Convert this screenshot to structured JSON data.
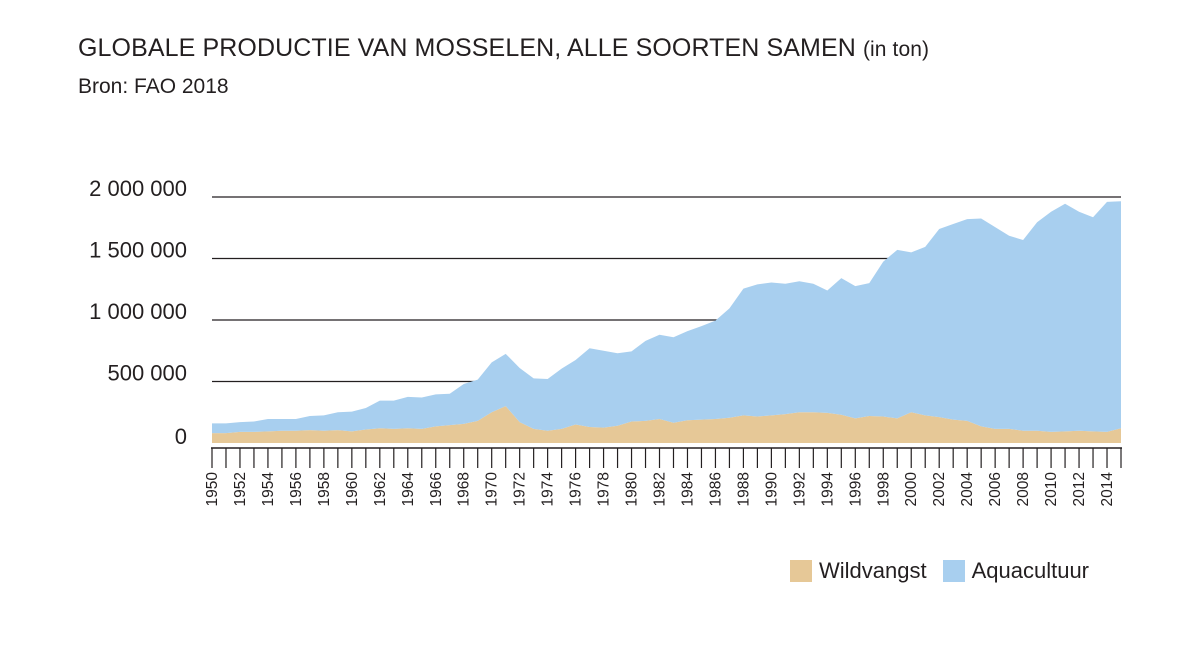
{
  "header": {
    "title": "GLOBALE PRODUCTIE VAN MOSSELEN, ALLE SOORTEN SAMEN",
    "title_unit": "(in ton)",
    "subtitle": "Bron: FAO 2018"
  },
  "legend": [
    {
      "name": "Wildvangst",
      "color": "#e6c897"
    },
    {
      "name": "Aquacultuur",
      "color": "#a8cfef"
    }
  ],
  "chart_data": {
    "type": "area",
    "stacked": true,
    "title": "GLOBALE PRODUCTIE VAN MOSSELEN, ALLE SOORTEN SAMEN (in ton)",
    "xlabel": "",
    "ylabel": "",
    "ylim": [
      0,
      2000000
    ],
    "yticks": [
      0,
      500000,
      1000000,
      1500000,
      2000000
    ],
    "ytick_labels": [
      "0",
      "500 000",
      "1 000 000",
      "1 500 000",
      "2 000 000"
    ],
    "xtick_labels": [
      "1950",
      "1952",
      "1954",
      "1956",
      "1958",
      "1960",
      "1962",
      "1964",
      "1966",
      "1968",
      "1970",
      "1972",
      "1974",
      "1976",
      "1978",
      "1980",
      "1982",
      "1984",
      "1986",
      "1988",
      "1990",
      "1992",
      "1994",
      "1996",
      "1998",
      "2000",
      "2002",
      "2004",
      "2006",
      "2008",
      "2010",
      "2012",
      "2014"
    ],
    "grid": "horizontal",
    "legend_position": "bottom-right",
    "x": [
      1950,
      1951,
      1952,
      1953,
      1954,
      1955,
      1956,
      1957,
      1958,
      1959,
      1960,
      1961,
      1962,
      1963,
      1964,
      1965,
      1966,
      1967,
      1968,
      1969,
      1970,
      1971,
      1972,
      1973,
      1974,
      1975,
      1976,
      1977,
      1978,
      1979,
      1980,
      1981,
      1982,
      1983,
      1984,
      1985,
      1986,
      1987,
      1988,
      1989,
      1990,
      1991,
      1992,
      1993,
      1994,
      1995,
      1996,
      1997,
      1998,
      1999,
      2000,
      2001,
      2002,
      2003,
      2004,
      2005,
      2006,
      2007,
      2008,
      2009,
      2010,
      2011,
      2012,
      2013,
      2014,
      2015
    ],
    "series": [
      {
        "name": "Wildvangst",
        "color": "#e6c897",
        "values": [
          80000,
          80000,
          90000,
          90000,
          95000,
          100000,
          100000,
          105000,
          100000,
          105000,
          95000,
          110000,
          120000,
          115000,
          120000,
          115000,
          135000,
          145000,
          155000,
          180000,
          250000,
          300000,
          170000,
          115000,
          100000,
          115000,
          150000,
          130000,
          125000,
          140000,
          175000,
          180000,
          195000,
          165000,
          185000,
          190000,
          195000,
          205000,
          225000,
          215000,
          225000,
          235000,
          250000,
          250000,
          245000,
          230000,
          200000,
          220000,
          215000,
          200000,
          250000,
          225000,
          210000,
          190000,
          180000,
          135000,
          115000,
          115000,
          100000,
          100000,
          90000,
          95000,
          100000,
          95000,
          90000,
          120000
        ]
      },
      {
        "name": "Aquacultuur",
        "color": "#a8cfef",
        "values": [
          80000,
          80000,
          80000,
          85000,
          100000,
          95000,
          95000,
          115000,
          125000,
          145000,
          160000,
          175000,
          225000,
          230000,
          255000,
          255000,
          260000,
          255000,
          325000,
          335000,
          405000,
          425000,
          440000,
          410000,
          420000,
          490000,
          525000,
          640000,
          625000,
          590000,
          570000,
          650000,
          685000,
          695000,
          725000,
          760000,
          800000,
          890000,
          1030000,
          1075000,
          1080000,
          1060000,
          1065000,
          1045000,
          995000,
          1110000,
          1075000,
          1080000,
          1260000,
          1370000,
          1300000,
          1370000,
          1530000,
          1590000,
          1640000,
          1690000,
          1640000,
          1570000,
          1550000,
          1695000,
          1790000,
          1850000,
          1780000,
          1740000,
          1870000,
          1845000
        ]
      }
    ]
  }
}
